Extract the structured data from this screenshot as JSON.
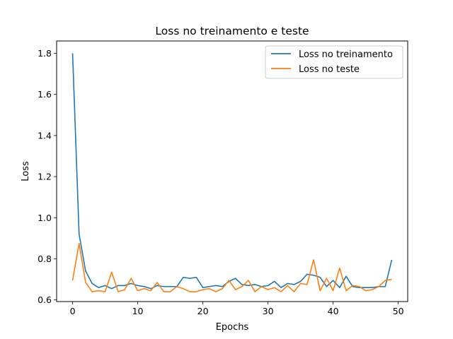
{
  "chart_data": {
    "type": "line",
    "title": "Loss no treinamento e teste",
    "xlabel": "Epochs",
    "ylabel": "Loss",
    "xlim": [
      -2.45,
      51.45
    ],
    "ylim": [
      0.592,
      1.86
    ],
    "xticks": [
      0,
      10,
      20,
      30,
      40,
      50
    ],
    "yticks": [
      0.6,
      0.8,
      1.0,
      1.2,
      1.4,
      1.6,
      1.8
    ],
    "ytick_labels": [
      "0.6",
      "0.8",
      "1.0",
      "1.2",
      "1.4",
      "1.6",
      "1.8"
    ],
    "grid": false,
    "legend_position": "top-right",
    "x": [
      0,
      1,
      2,
      3,
      4,
      5,
      6,
      7,
      8,
      9,
      10,
      11,
      12,
      13,
      14,
      15,
      16,
      17,
      18,
      19,
      20,
      21,
      22,
      23,
      24,
      25,
      26,
      27,
      28,
      29,
      30,
      31,
      32,
      33,
      34,
      35,
      36,
      37,
      38,
      39,
      40,
      41,
      42,
      43,
      44,
      45,
      46,
      47,
      48,
      49
    ],
    "series": [
      {
        "name": "Loss no treinamento",
        "color": "#1f77b4",
        "values": [
          1.8,
          0.92,
          0.74,
          0.68,
          0.66,
          0.67,
          0.655,
          0.67,
          0.67,
          0.68,
          0.67,
          0.665,
          0.655,
          0.67,
          0.665,
          0.665,
          0.665,
          0.71,
          0.705,
          0.71,
          0.66,
          0.665,
          0.67,
          0.665,
          0.69,
          0.705,
          0.675,
          0.67,
          0.675,
          0.665,
          0.67,
          0.69,
          0.66,
          0.68,
          0.675,
          0.69,
          0.725,
          0.72,
          0.71,
          0.665,
          0.695,
          0.66,
          0.715,
          0.665,
          0.66,
          0.66,
          0.66,
          0.665,
          0.665,
          0.795
        ]
      },
      {
        "name": "Loss no teste",
        "color": "#ff7f0e",
        "values": [
          0.695,
          0.875,
          0.685,
          0.64,
          0.645,
          0.64,
          0.735,
          0.64,
          0.65,
          0.705,
          0.645,
          0.655,
          0.645,
          0.685,
          0.64,
          0.64,
          0.665,
          0.655,
          0.64,
          0.64,
          0.65,
          0.655,
          0.64,
          0.655,
          0.695,
          0.65,
          0.665,
          0.695,
          0.64,
          0.665,
          0.65,
          0.66,
          0.64,
          0.67,
          0.64,
          0.68,
          0.675,
          0.795,
          0.645,
          0.705,
          0.645,
          0.755,
          0.645,
          0.67,
          0.665,
          0.645,
          0.65,
          0.665,
          0.695,
          0.7
        ]
      }
    ]
  }
}
